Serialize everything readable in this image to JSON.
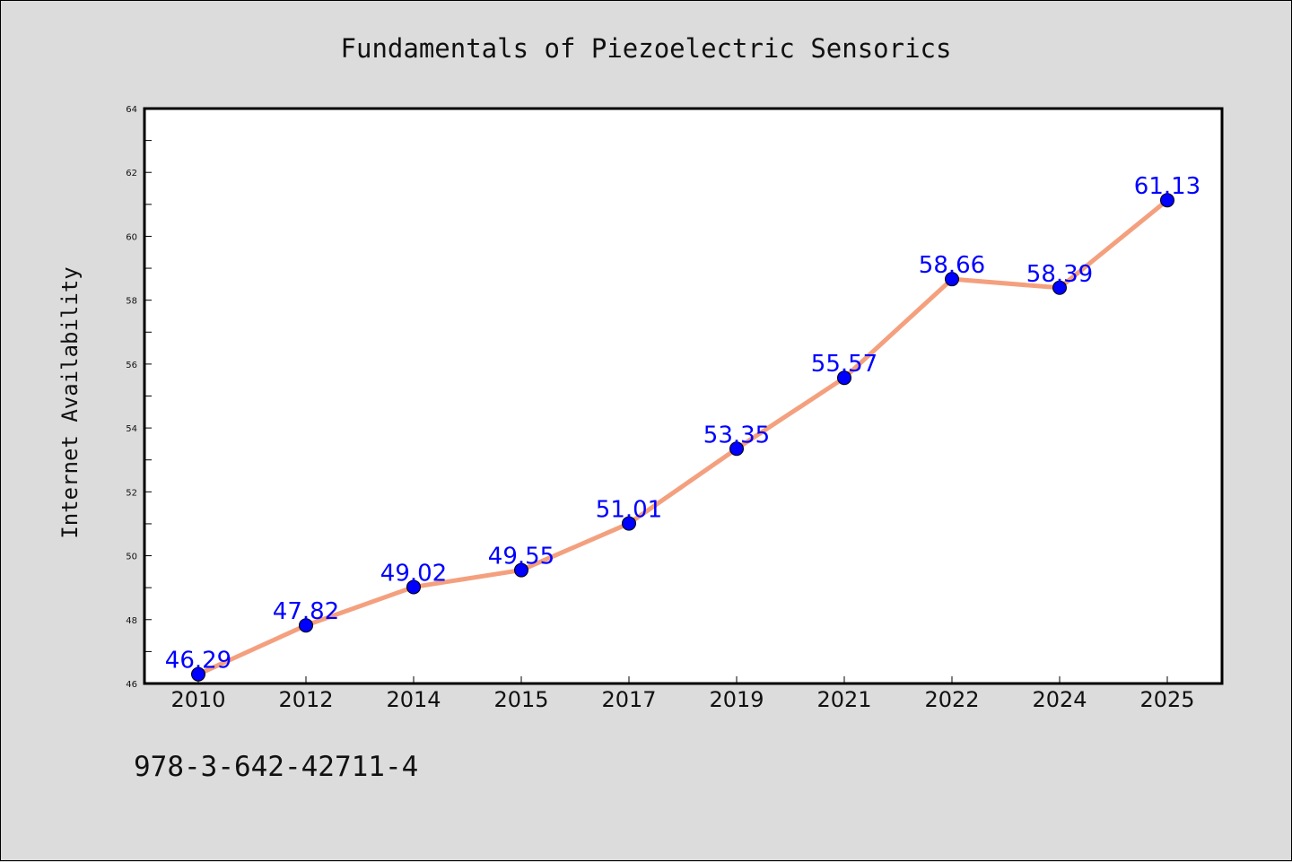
{
  "chart_data": {
    "type": "line",
    "title": "Fundamentals of Piezoelectric Sensorics",
    "xlabel": "",
    "ylabel": "Internet Availability",
    "categories": [
      "2010",
      "2012",
      "2014",
      "2015",
      "2017",
      "2019",
      "2021",
      "2022",
      "2024",
      "2025"
    ],
    "series": [
      {
        "values": [
          46.29,
          47.82,
          49.02,
          49.55,
          51.01,
          53.35,
          55.57,
          58.66,
          58.39,
          61.13
        ],
        "labels": [
          "46.29",
          "47.82",
          "49.02",
          "49.55",
          "51.01",
          "53.35",
          "55.57",
          "58.66",
          "58.39",
          "61.13"
        ],
        "line_color": "#f4a07e",
        "marker_color": "#0000ff"
      }
    ],
    "ylim": [
      46,
      64
    ],
    "yticks": [
      46,
      48,
      50,
      52,
      54,
      56,
      58,
      60,
      62,
      64
    ],
    "ytick_labels": [
      "46",
      "48",
      "50",
      "52",
      "54",
      "56",
      "58",
      "60",
      "62",
      "64"
    ],
    "grid": false,
    "legend": "none"
  },
  "footer": {
    "isbn": "978-3-642-42711-4"
  },
  "colors": {
    "background": "#dcdcdc",
    "plot_background": "#ffffff",
    "line": "#f4a07e",
    "marker": "#0000ff",
    "data_label": "#0000ff"
  }
}
